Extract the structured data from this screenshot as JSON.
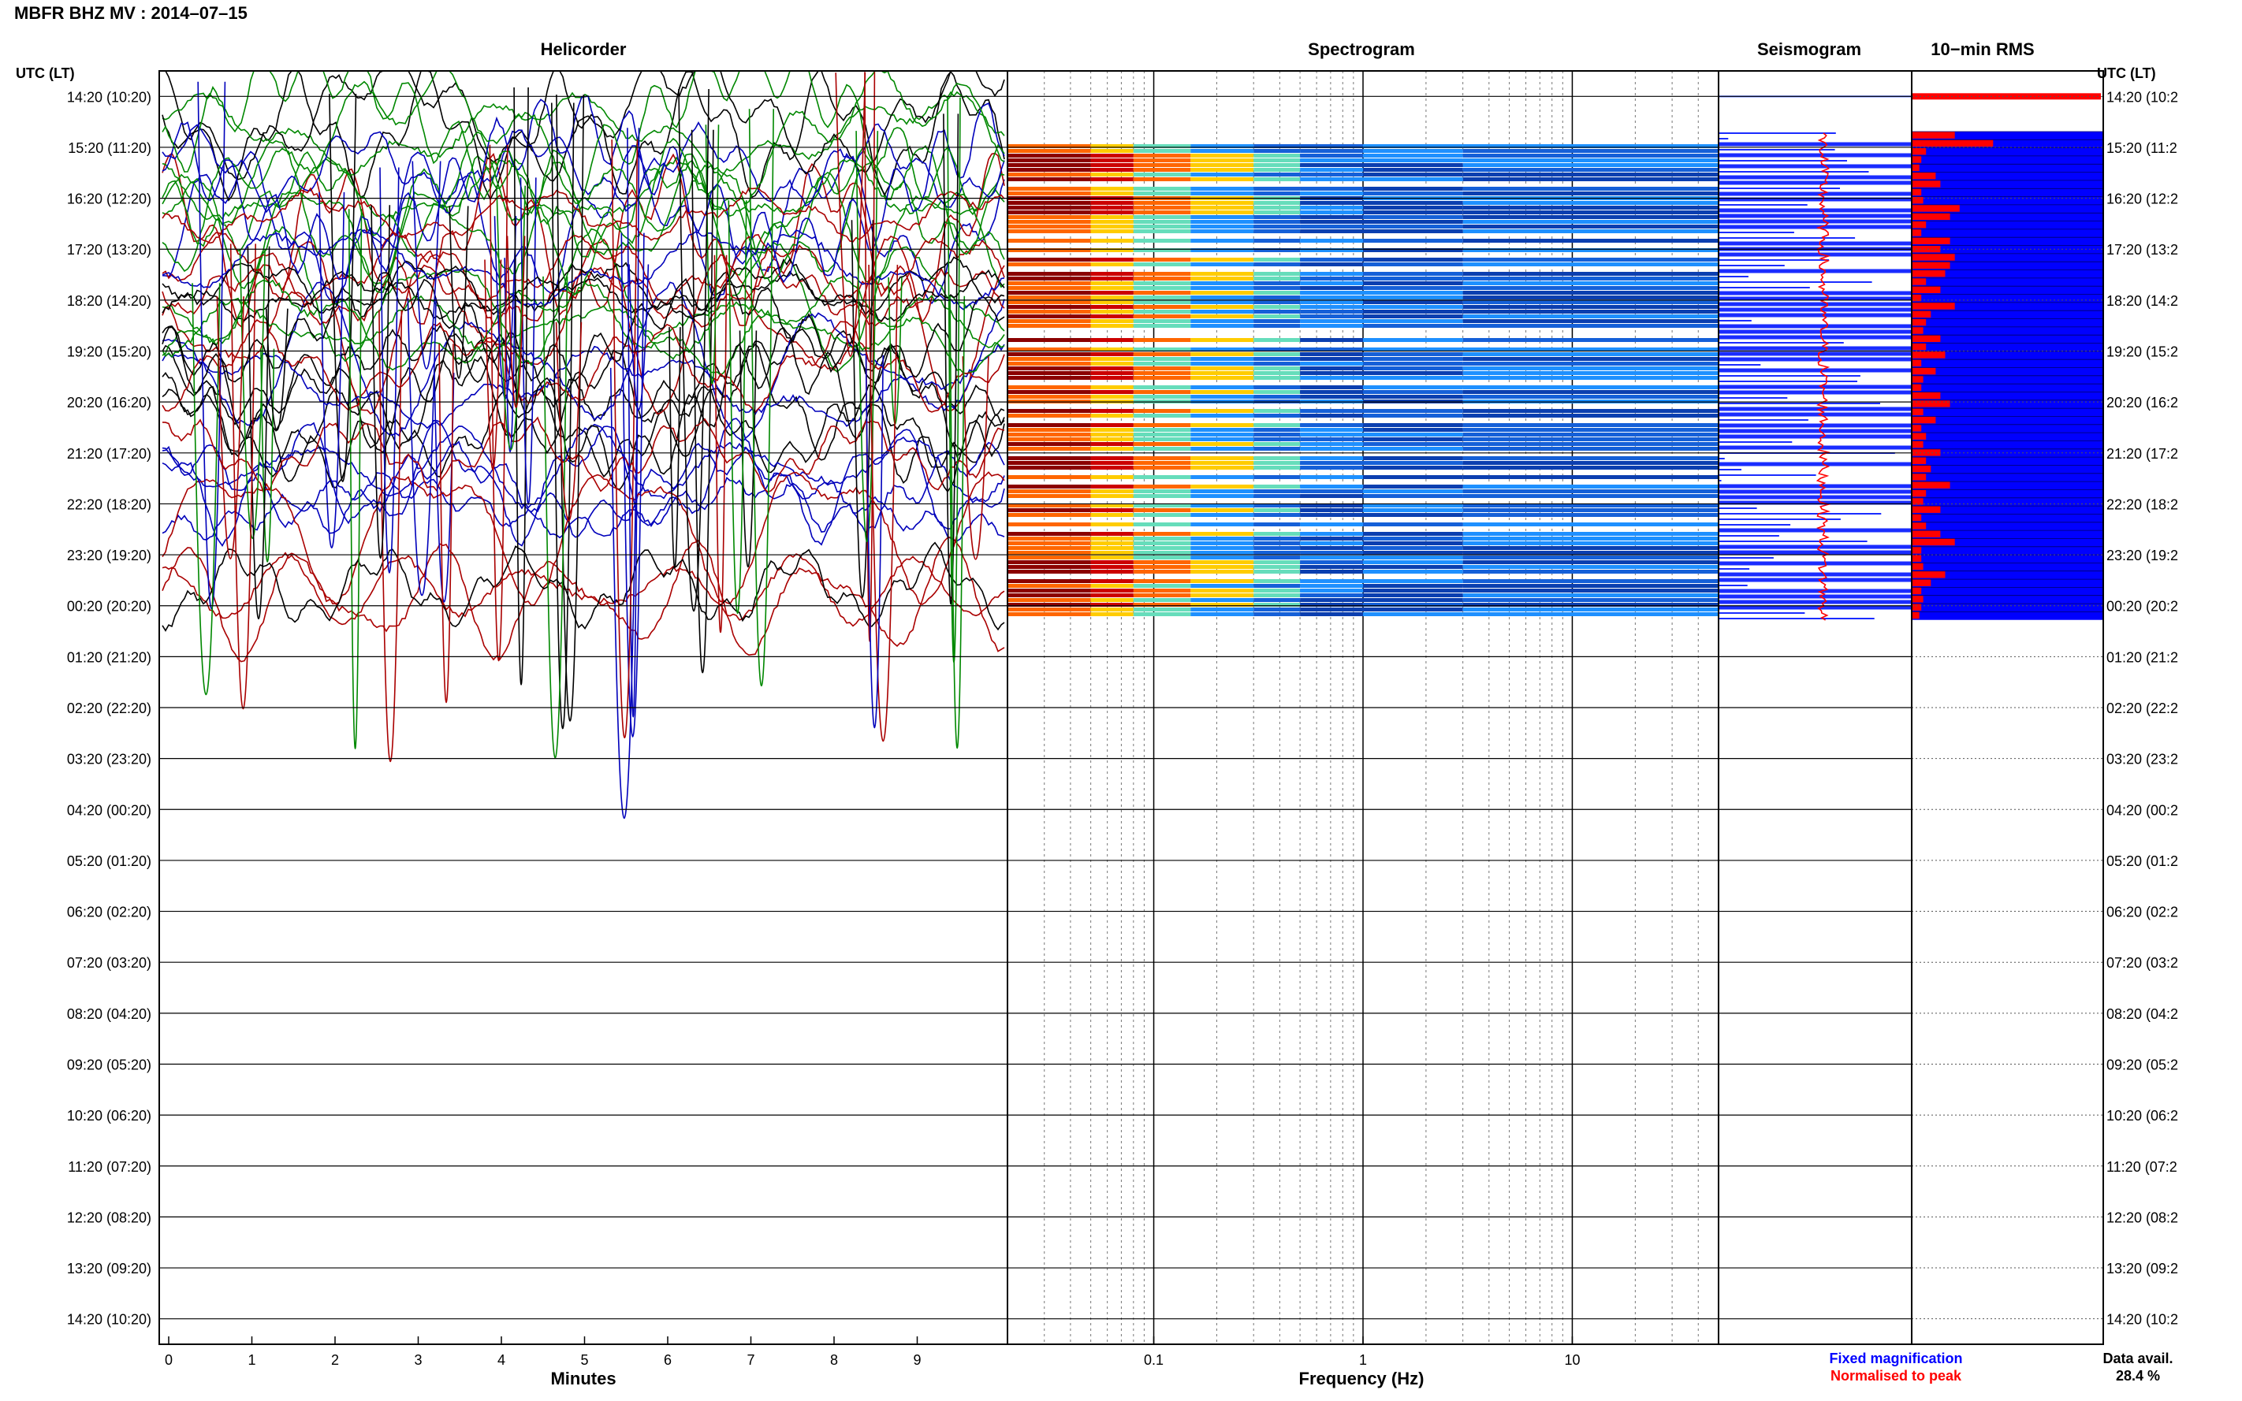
{
  "header": {
    "title": "MBFR BHZ MV : 2014–07–15"
  },
  "axes": {
    "row_label_left": "UTC (LT)",
    "row_label_right": "UTC (LT)"
  },
  "panels": {
    "helicorder": "Helicorder",
    "spectrogram": "Spectrogram",
    "seismogram": "Seismogram",
    "rms": "10−min RMS"
  },
  "legend": {
    "fixed": "Fixed magnification",
    "normalised": "Normalised to peak",
    "data_avail_label": "Data avail.",
    "data_avail_value": "28.4 %"
  },
  "colors": {
    "fixed": "#0000ff",
    "normalised": "#ff0000",
    "rms_bar": "#ff0000",
    "rms_fill": "#0000ff"
  },
  "chart_data": {
    "type": "heatmap",
    "rows_utc": [
      "14:20",
      "15:20",
      "16:20",
      "17:20",
      "18:20",
      "19:20",
      "20:20",
      "21:20",
      "22:20",
      "23:20",
      "00:20",
      "01:20",
      "02:20",
      "03:20",
      "04:20",
      "05:20",
      "06:20",
      "07:20",
      "08:20",
      "09:20",
      "10:20",
      "11:20",
      "12:20",
      "13:20",
      "14:20"
    ],
    "rows_lt": [
      "(10:20)",
      "(11:20)",
      "(12:20)",
      "(13:20)",
      "(14:20)",
      "(15:20)",
      "(16:20)",
      "(17:20)",
      "(18:20)",
      "(19:20)",
      "(20:20)",
      "(21:20)",
      "(22:20)",
      "(23:20)",
      "(00:20)",
      "(01:20)",
      "(02:20)",
      "(03:20)",
      "(04:20)",
      "(05:20)",
      "(06:20)",
      "(07:20)",
      "(08:20)",
      "(09:20)",
      "(10:20)"
    ],
    "right_labels": [
      "14:20 (10:2",
      "15:20 (11:2",
      "16:20 (12:2",
      "17:20 (13:2",
      "18:20 (14:2",
      "19:20 (15:2",
      "20:20 (16:2",
      "21:20 (17:2",
      "22:20 (18:2",
      "23:20 (19:2",
      "00:20 (20:2",
      "01:20 (21:2",
      "02:20 (22:2",
      "03:20 (23:2",
      "04:20 (00:2",
      "05:20 (01:2",
      "06:20 (02:2",
      "07:20 (03:2",
      "08:20 (04:2",
      "09:20 (05:2",
      "10:20 (06:2",
      "11:20 (07:2",
      "12:20 (08:2",
      "13:20 (09:2",
      "14:20 (10:2"
    ],
    "helicorder": {
      "xlabel": "Minutes",
      "x_ticks": [
        "0",
        "1",
        "2",
        "3",
        "4",
        "5",
        "6",
        "7",
        "8",
        "9"
      ],
      "xlim": [
        0,
        10
      ],
      "data_rows": 11,
      "trace_colors": [
        "#000000",
        "#0000bb",
        "#aa0000",
        "#008800"
      ]
    },
    "spectrogram": {
      "xlabel": "Frequency (Hz)",
      "x_scale": "log",
      "xlim": [
        0.02,
        50
      ],
      "x_ticks": [
        "0.1",
        "1",
        "10"
      ],
      "active_rows": [
        1,
        10
      ]
    },
    "rms": {
      "bar_values": [
        0.45,
        0.85,
        0.15,
        0.1,
        0.08,
        0.25,
        0.3,
        0.1,
        0.12,
        0.5,
        0.4,
        0.15,
        0.1,
        0.4,
        0.3,
        0.45,
        0.4,
        0.35,
        0.15,
        0.3,
        0.1,
        0.45,
        0.2,
        0.15,
        0.12,
        0.3,
        0.15,
        0.35,
        0.1,
        0.25,
        0.12,
        0.1,
        0.3,
        0.4,
        0.12,
        0.25,
        0.1,
        0.15,
        0.12,
        0.3,
        0.15,
        0.2,
        0.15,
        0.4,
        0.15,
        0.12,
        0.3,
        0.1,
        0.15,
        0.3,
        0.45,
        0.1,
        0.1,
        0.12,
        0.35,
        0.2,
        0.1,
        0.12,
        0.1,
        0.08
      ]
    }
  }
}
